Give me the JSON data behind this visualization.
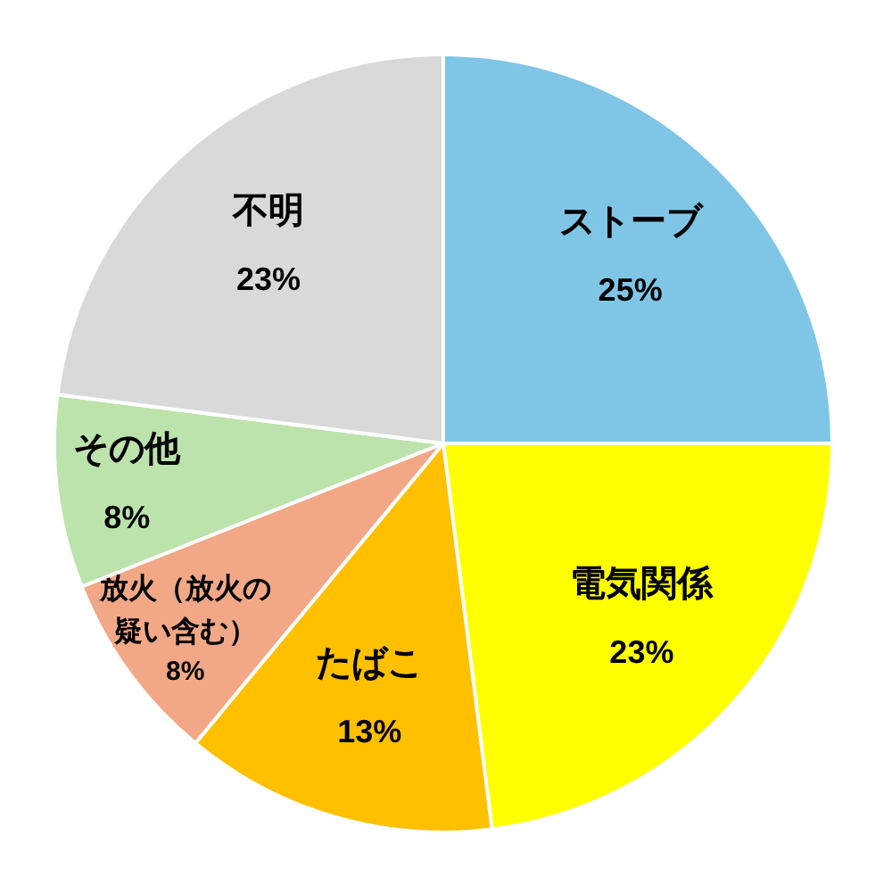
{
  "chart_data": {
    "type": "pie",
    "categories": [
      "ストーブ",
      "電気関係",
      "たばこ",
      "放火（放火の疑い含む）",
      "その他",
      "不明"
    ],
    "values": [
      25,
      23,
      13,
      8,
      8,
      23
    ],
    "value_labels": [
      "25%",
      "23%",
      "13%",
      "8%",
      "8%",
      "23%"
    ],
    "colors": [
      "#7fc6e6",
      "#ffff00",
      "#ffc000",
      "#f2a886",
      "#bde3ac",
      "#d9d9d9"
    ]
  }
}
